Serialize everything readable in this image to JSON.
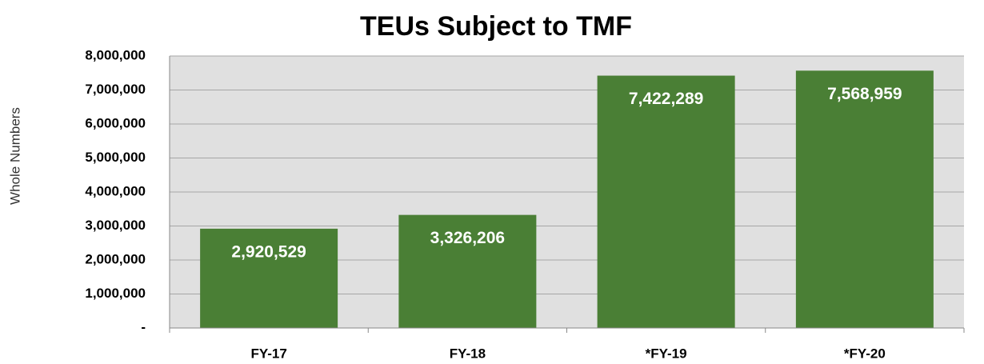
{
  "chart_data": {
    "type": "bar",
    "title": "TEUs Subject to TMF",
    "y_label": "Whole Numbers",
    "categories": [
      "FY-17",
      "FY-18",
      "*FY-19",
      "*FY-20"
    ],
    "values": [
      2920529,
      3326206,
      7422289,
      7568959
    ],
    "value_labels": [
      "2,920,529",
      "3,326,206",
      "7,422,289",
      "7,568,959"
    ],
    "color": "#4a7f35",
    "ylim": [
      0,
      8000000
    ],
    "yticks": [
      {
        "value": 0,
        "label": "-"
      },
      {
        "value": 1000000,
        "label": "1,000,000"
      },
      {
        "value": 2000000,
        "label": "2,000,000"
      },
      {
        "value": 3000000,
        "label": "3,000,000"
      },
      {
        "value": 4000000,
        "label": "4,000,000"
      },
      {
        "value": 5000000,
        "label": "5,000,000"
      },
      {
        "value": 6000000,
        "label": "6,000,000"
      },
      {
        "value": 7000000,
        "label": "7,000,000"
      },
      {
        "value": 8000000,
        "label": "8,000,000"
      }
    ],
    "grid": true
  }
}
